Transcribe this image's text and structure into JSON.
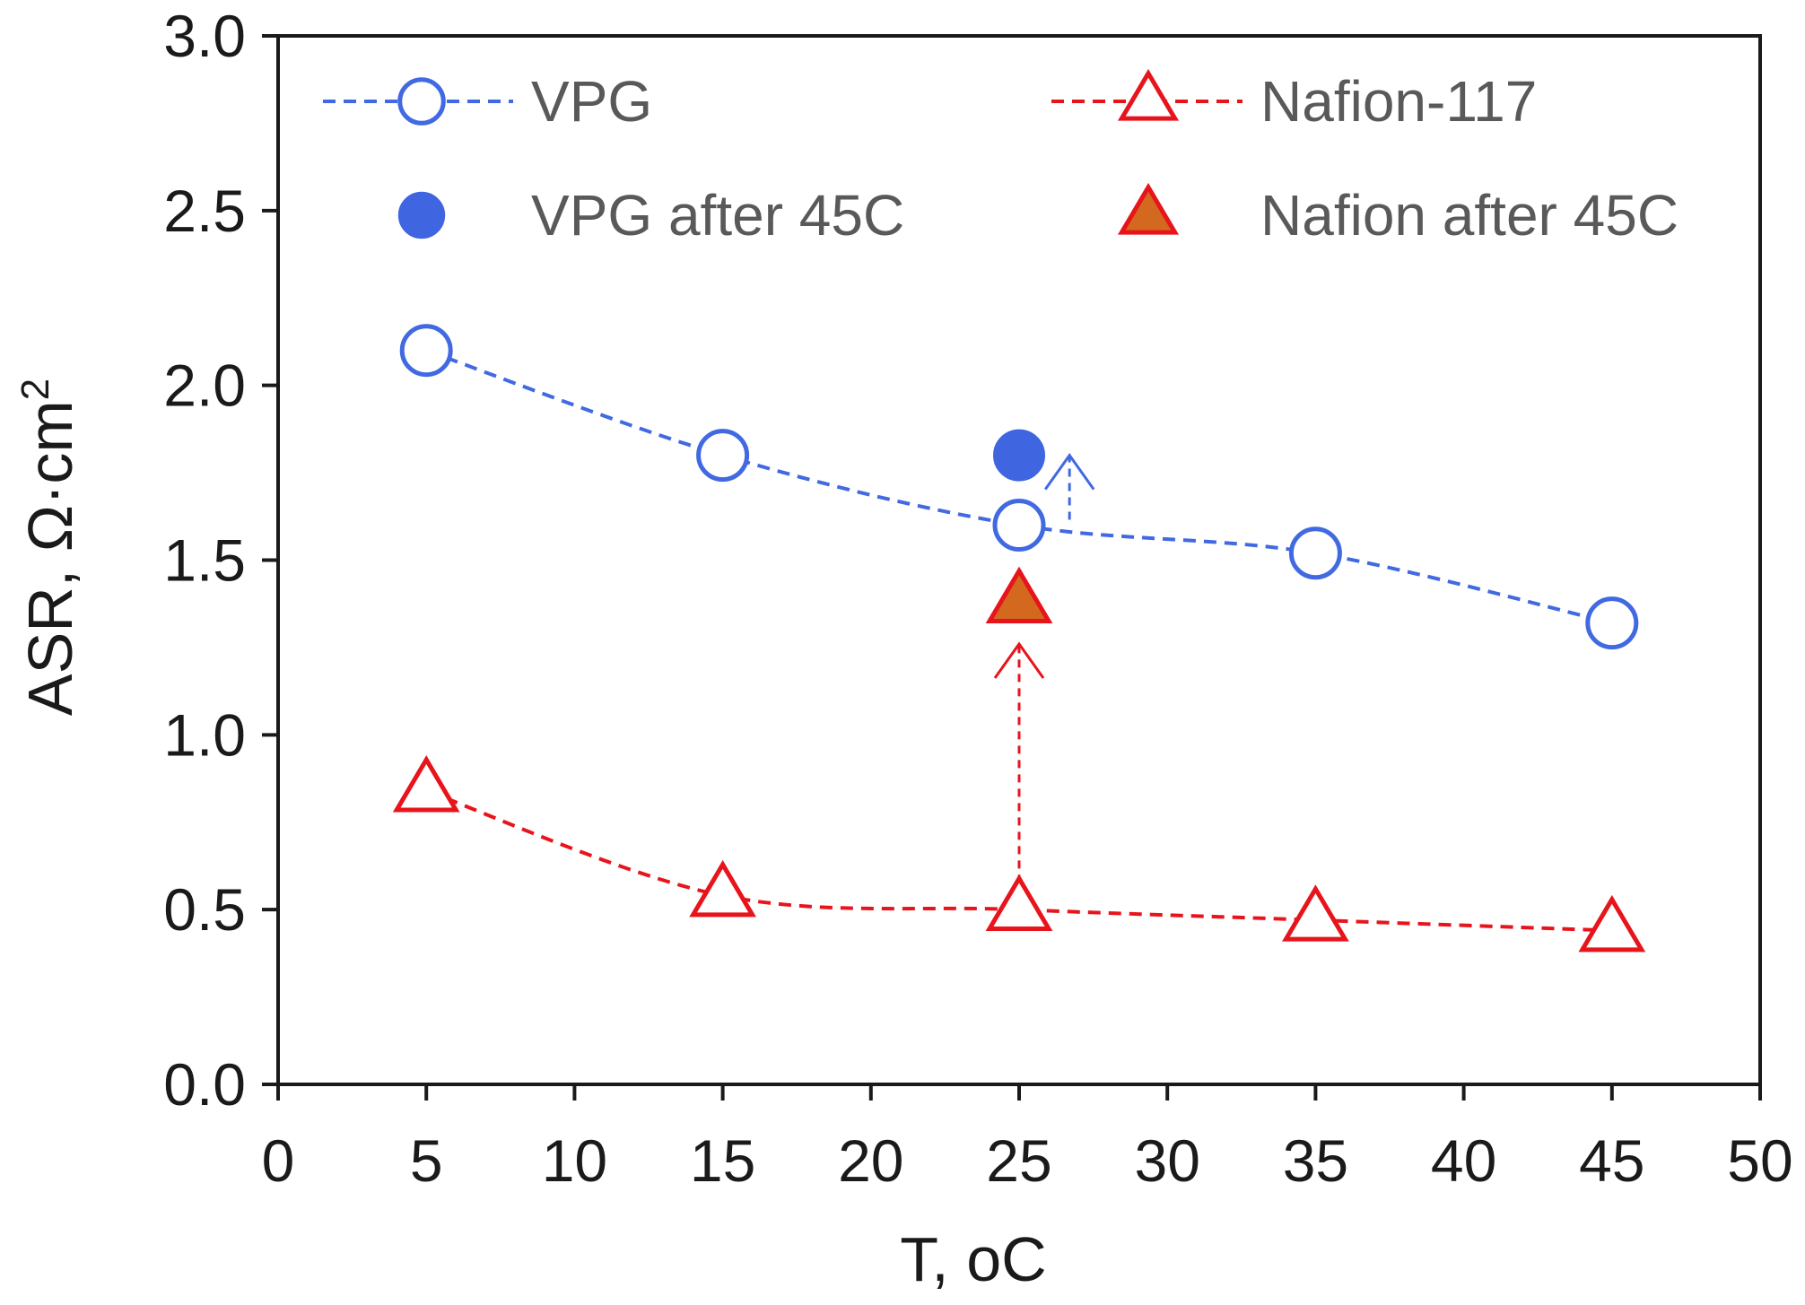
{
  "chart_data": {
    "type": "scatter",
    "title": "",
    "xlabel": "T, ",
    "xlabel_unit": "oC",
    "ylabel": "ASR, Ω·cm",
    "ylabel_sup": "2",
    "xlim": [
      0,
      50
    ],
    "ylim": [
      0,
      3.0
    ],
    "x_ticks": [
      0,
      5,
      10,
      15,
      20,
      25,
      30,
      35,
      40,
      45,
      50
    ],
    "x_tick_labels": [
      "0",
      "5",
      "10",
      "15",
      "20",
      "25",
      "30",
      "35",
      "40",
      "45",
      "50"
    ],
    "y_ticks": [
      0,
      0.5,
      1.0,
      1.5,
      2.0,
      2.5,
      3.0
    ],
    "y_tick_labels": [
      "0.0",
      "0.5",
      "1.0",
      "1.5",
      "2.0",
      "2.5",
      "3.0"
    ],
    "grid": false,
    "legend_position": "top",
    "series": [
      {
        "name": "VPG",
        "marker": "open-circle",
        "line": "dashed",
        "color": "#4169e1",
        "x": [
          5,
          15,
          25,
          35,
          45
        ],
        "y": [
          2.1,
          1.8,
          1.6,
          1.52,
          1.32
        ]
      },
      {
        "name": "Nafion-117",
        "marker": "open-triangle",
        "line": "dashed",
        "color": "#e8141c",
        "x": [
          5,
          15,
          25,
          35,
          45
        ],
        "y": [
          0.84,
          0.54,
          0.5,
          0.47,
          0.44
        ]
      },
      {
        "name": "VPG after 45C",
        "marker": "filled-circle",
        "line": "none",
        "color": "#3f66e0",
        "x": [
          25
        ],
        "y": [
          1.8
        ]
      },
      {
        "name": "Nafion after 45C",
        "marker": "filled-triangle",
        "line": "none",
        "color": "#d2691e",
        "edge_color": "#e8141c",
        "x": [
          25
        ],
        "y": [
          1.38
        ]
      }
    ],
    "annotations": [
      {
        "type": "arrow",
        "color": "#4169e1",
        "x": 26.7,
        "from_y": 1.6,
        "to_y": 1.8
      },
      {
        "type": "arrow",
        "color": "#e8141c",
        "x": 25,
        "from_y": 0.52,
        "to_y": 1.26
      }
    ]
  }
}
